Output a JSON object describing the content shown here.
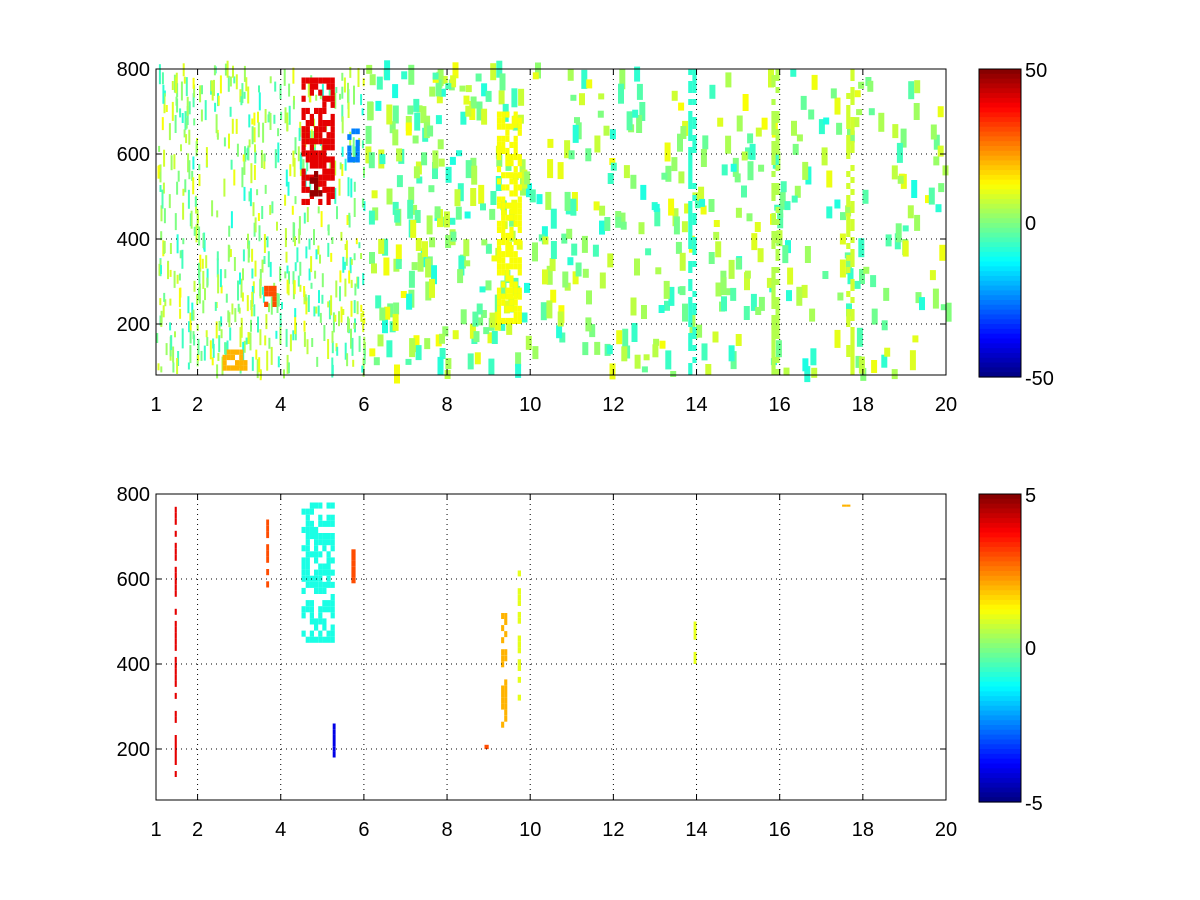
{
  "chart_data": [
    {
      "type": "heatmap",
      "title": "",
      "xlabel": "",
      "ylabel": "",
      "xlim": [
        1,
        20
      ],
      "ylim": [
        80,
        800
      ],
      "x_ticks": [
        "1",
        "2",
        "4",
        "6",
        "8",
        "10",
        "12",
        "14",
        "16",
        "18",
        "20"
      ],
      "y_ticks": [
        "200",
        "400",
        "600",
        "800"
      ],
      "grid": true,
      "colormap": "jet",
      "clim": [
        -50,
        50
      ],
      "colorbar_ticks": [
        "50",
        "0",
        "-50"
      ],
      "features": [
        {
          "x": [
            4.5,
            5.3
          ],
          "y": [
            480,
            780
          ],
          "value": 40
        },
        {
          "x": [
            4.7,
            5.0
          ],
          "y": [
            500,
            560
          ],
          "value": 48
        },
        {
          "x": [
            5.6,
            5.9
          ],
          "y": [
            580,
            660
          ],
          "value": -25
        },
        {
          "x": [
            3.6,
            3.9
          ],
          "y": [
            240,
            290
          ],
          "value": 30
        },
        {
          "x": [
            2.6,
            3.2
          ],
          "y": [
            90,
            140
          ],
          "value": 20
        },
        {
          "x": [
            9.2,
            9.8
          ],
          "y": [
            200,
            700
          ],
          "value": 12
        },
        {
          "x": [
            13.8,
            14.0
          ],
          "y": [
            80,
            800
          ],
          "value": -8
        },
        {
          "x": [
            15.8,
            16.0
          ],
          "y": [
            80,
            800
          ],
          "value": 5
        },
        {
          "x": [
            17.6,
            17.8
          ],
          "y": [
            80,
            800
          ],
          "value": 8
        }
      ]
    },
    {
      "type": "heatmap",
      "title": "",
      "xlabel": "",
      "ylabel": "",
      "xlim": [
        1,
        20
      ],
      "ylim": [
        80,
        800
      ],
      "x_ticks": [
        "1",
        "2",
        "4",
        "6",
        "8",
        "10",
        "12",
        "14",
        "16",
        "18",
        "20"
      ],
      "y_ticks": [
        "200",
        "400",
        "600",
        "800"
      ],
      "grid": true,
      "colormap": "jet",
      "clim": [
        -5,
        5
      ],
      "colorbar_ticks": [
        "5",
        "0",
        "-5"
      ],
      "features": [
        {
          "x": [
            4.5,
            5.3
          ],
          "y": [
            450,
            780
          ],
          "value": -1
        },
        {
          "x": [
            1.45,
            1.5
          ],
          "y": [
            120,
            770
          ],
          "value": 4
        },
        {
          "x": [
            3.65,
            3.72
          ],
          "y": [
            580,
            740
          ],
          "value": 3
        },
        {
          "x": [
            5.25,
            5.32
          ],
          "y": [
            180,
            260
          ],
          "value": -4
        },
        {
          "x": [
            5.7,
            5.8
          ],
          "y": [
            590,
            670
          ],
          "value": 3
        },
        {
          "x": [
            9.3,
            9.45
          ],
          "y": [
            250,
            520
          ],
          "value": 2
        },
        {
          "x": [
            9.7,
            9.78
          ],
          "y": [
            300,
            620
          ],
          "value": 1
        },
        {
          "x": [
            8.9,
            9.0
          ],
          "y": [
            200,
            210
          ],
          "value": 3
        },
        {
          "x": [
            13.93,
            14.0
          ],
          "y": [
            400,
            500
          ],
          "value": 1
        },
        {
          "x": [
            17.5,
            17.7
          ],
          "y": [
            770,
            775
          ],
          "value": 2
        }
      ]
    }
  ]
}
